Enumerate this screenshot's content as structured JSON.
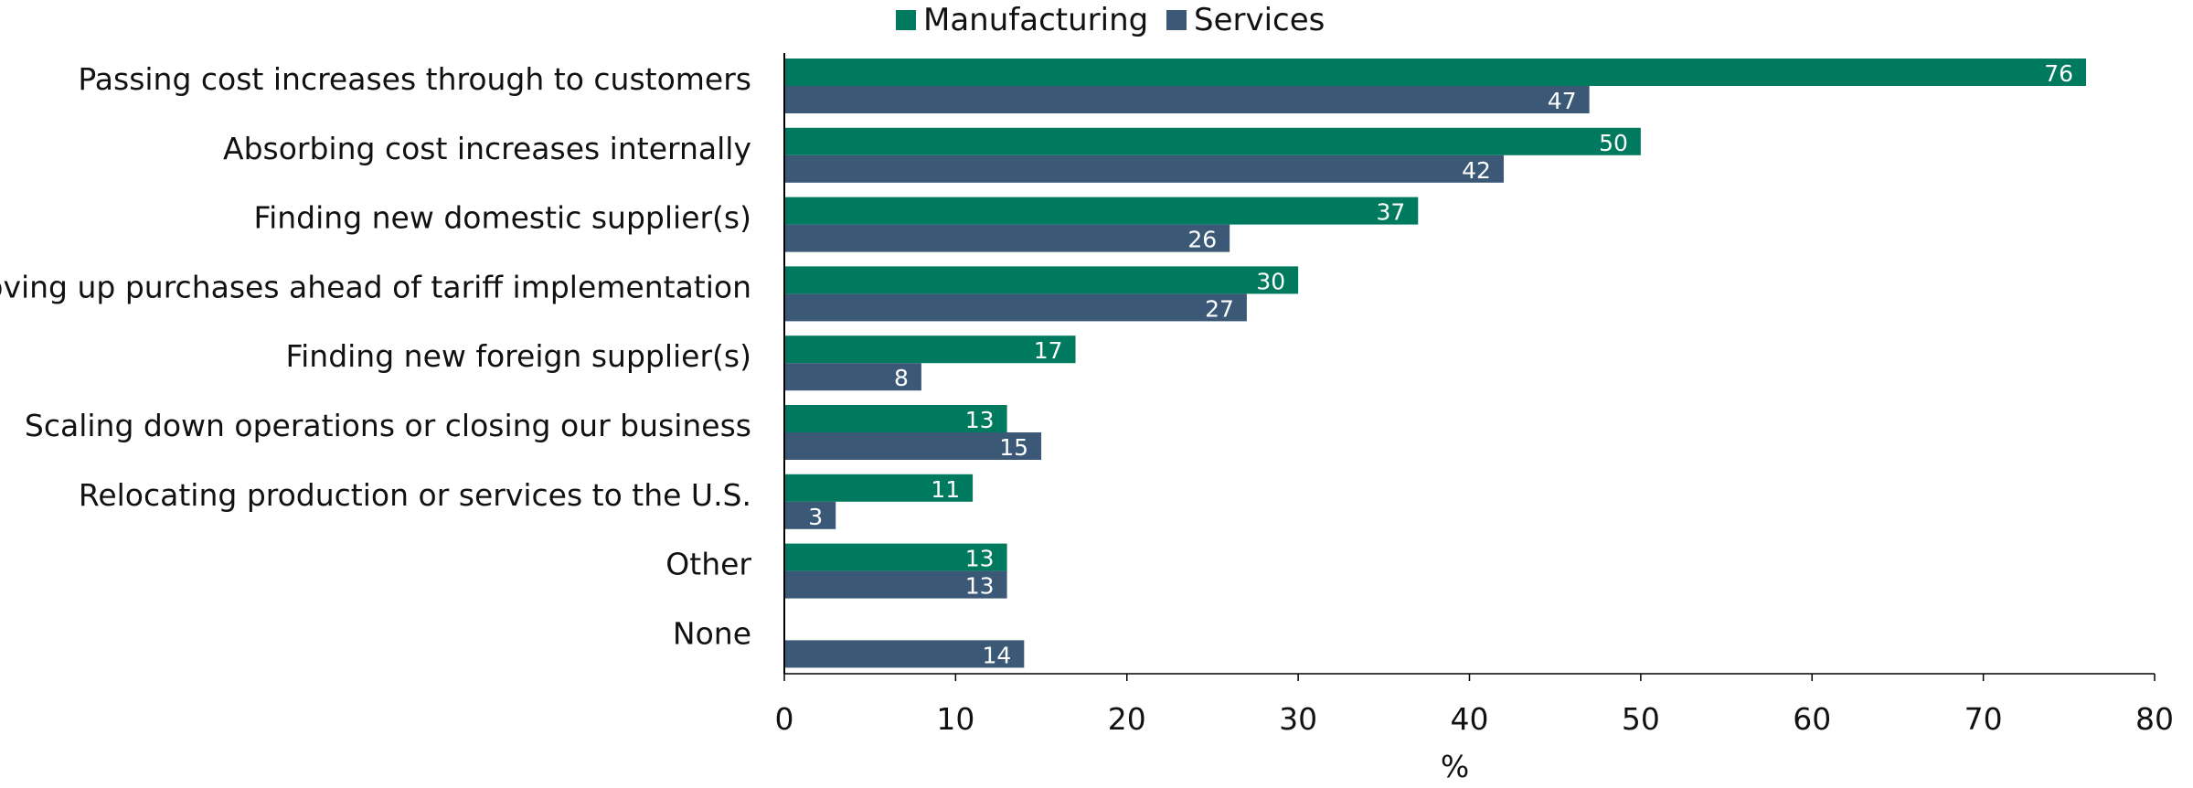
{
  "chart_data": {
    "type": "bar",
    "orientation": "horizontal",
    "categories": [
      "Passing cost increases through to customers",
      "Absorbing cost increases internally",
      "Finding new domestic supplier(s)",
      "Moving up purchases ahead of tariff implementation",
      "Finding new foreign supplier(s)",
      "Scaling down operations or closing our business",
      "Relocating production or services to the U.S.",
      "Other",
      "None"
    ],
    "series": [
      {
        "name": "Manufacturing",
        "color": "#007a5e",
        "values": [
          76,
          50,
          37,
          30,
          17,
          13,
          11,
          13,
          null
        ]
      },
      {
        "name": "Services",
        "color": "#3b5976",
        "values": [
          47,
          42,
          26,
          27,
          8,
          15,
          3,
          13,
          14
        ]
      }
    ],
    "xlabel": "%",
    "ylabel": "",
    "xlim": [
      0,
      80
    ],
    "xticks": [
      0,
      10,
      20,
      30,
      40,
      50,
      60,
      70,
      80
    ],
    "grid": false,
    "legend": "top"
  }
}
